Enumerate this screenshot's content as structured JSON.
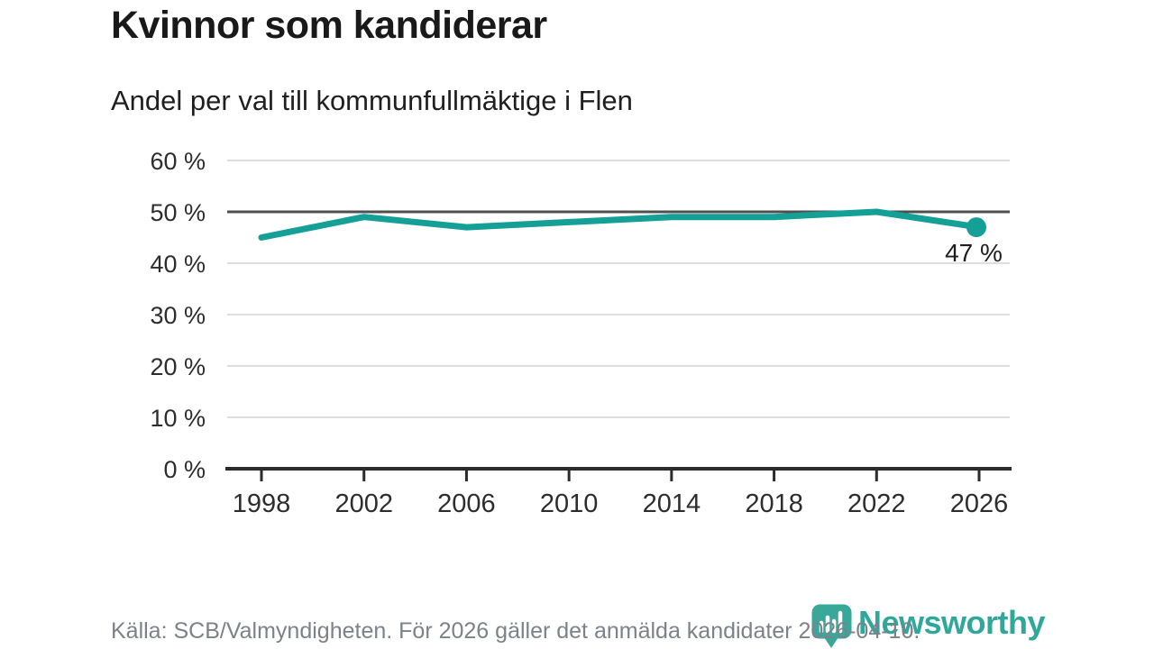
{
  "header": {
    "title": "Kvinnor som kandiderar",
    "subtitle": "Andel per val till kommunfullmäktige i Flen"
  },
  "footer": {
    "source": "Källa: SCB/Valmyndigheten. För 2026 gäller det anmälda kandidater 2026-04-10.",
    "logo_text": "Newsworthy",
    "logo_icon": "bar-chart-speech-bubble",
    "logo_color": "#2fa79b"
  },
  "chart_data": {
    "type": "line",
    "title": "Kvinnor som kandiderar",
    "subtitle": "Andel per val till kommunfullmäktige i Flen",
    "x": [
      1998,
      2002,
      2006,
      2010,
      2014,
      2018,
      2022,
      2026
    ],
    "series": [
      {
        "values": [
          45,
          49,
          47,
          48,
          49,
          49,
          50,
          47
        ]
      }
    ],
    "ylim": [
      0,
      60
    ],
    "ytick_step": 10,
    "ytick_suffix": " %",
    "xtick_labels": [
      "1998",
      "2002",
      "2006",
      "2010",
      "2014",
      "2018",
      "2022",
      "2026"
    ],
    "ytick_labels": [
      "0 %",
      "10 %",
      "20 %",
      "30 %",
      "40 %",
      "50 %",
      "60 %"
    ],
    "reference_line": 50,
    "grid": true,
    "legend": "none",
    "end_label": "47 %",
    "line_color": "#14a096",
    "marker_color": "#14a096",
    "grid_color": "#dedede",
    "reference_line_color": "#4f4f4f",
    "axis_color": "#2b2b2b",
    "tick_label_color": "#2d2d2d",
    "end_label_color": "#1e1e1e"
  }
}
